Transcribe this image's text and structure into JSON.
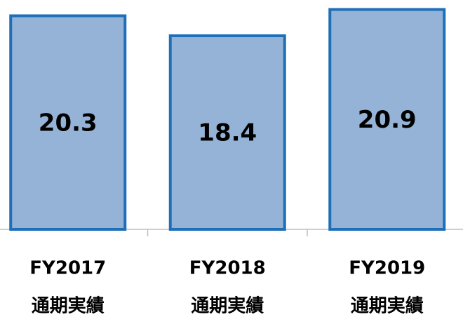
{
  "chart_data": {
    "type": "bar",
    "categories": [
      "FY2017",
      "FY2018",
      "FY2019"
    ],
    "category_sublabels": [
      "通期実績",
      "通期実績",
      "通期実績"
    ],
    "values": [
      20.3,
      18.4,
      20.9
    ],
    "color": "#95b3d7",
    "edge_color": "#1f6fb8",
    "ylim": [
      0,
      21.8
    ]
  }
}
